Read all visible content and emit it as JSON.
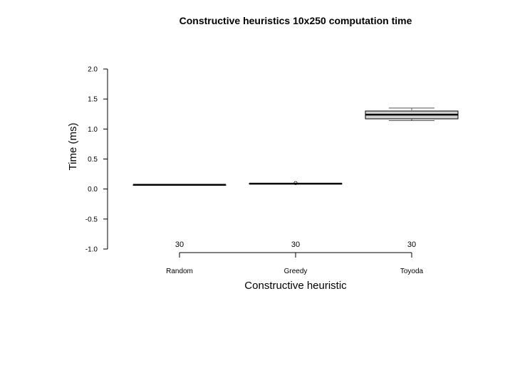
{
  "chart_data": {
    "type": "box",
    "title": "Constructive heuristics 10x250 computation time",
    "xlabel": "Constructive heuristic",
    "ylabel": "Time (ms)",
    "ylim": [
      -1.0,
      2.0
    ],
    "yticks": [
      "-1.0",
      "-0.5",
      "0.0",
      "0.5",
      "1.0",
      "1.5",
      "2.0"
    ],
    "ytick_values": [
      -1.0,
      -0.5,
      0.0,
      0.5,
      1.0,
      1.5,
      2.0
    ],
    "categories": [
      "Random",
      "Greedy",
      "Toyoda"
    ],
    "counts": [
      "30",
      "30",
      "30"
    ],
    "boxes": [
      {
        "name": "Random",
        "whisker_low": 0.07,
        "q1": 0.07,
        "median": 0.07,
        "q3": 0.07,
        "whisker_high": 0.07,
        "outliers": []
      },
      {
        "name": "Greedy",
        "whisker_low": 0.09,
        "q1": 0.09,
        "median": 0.09,
        "q3": 0.09,
        "whisker_high": 0.09,
        "outliers": [
          0.1
        ]
      },
      {
        "name": "Toyoda",
        "whisker_low": 1.14,
        "q1": 1.17,
        "median": 1.24,
        "q3": 1.3,
        "whisker_high": 1.35,
        "outliers": []
      }
    ],
    "box_fill": "#d3d3d3",
    "grid": false
  }
}
